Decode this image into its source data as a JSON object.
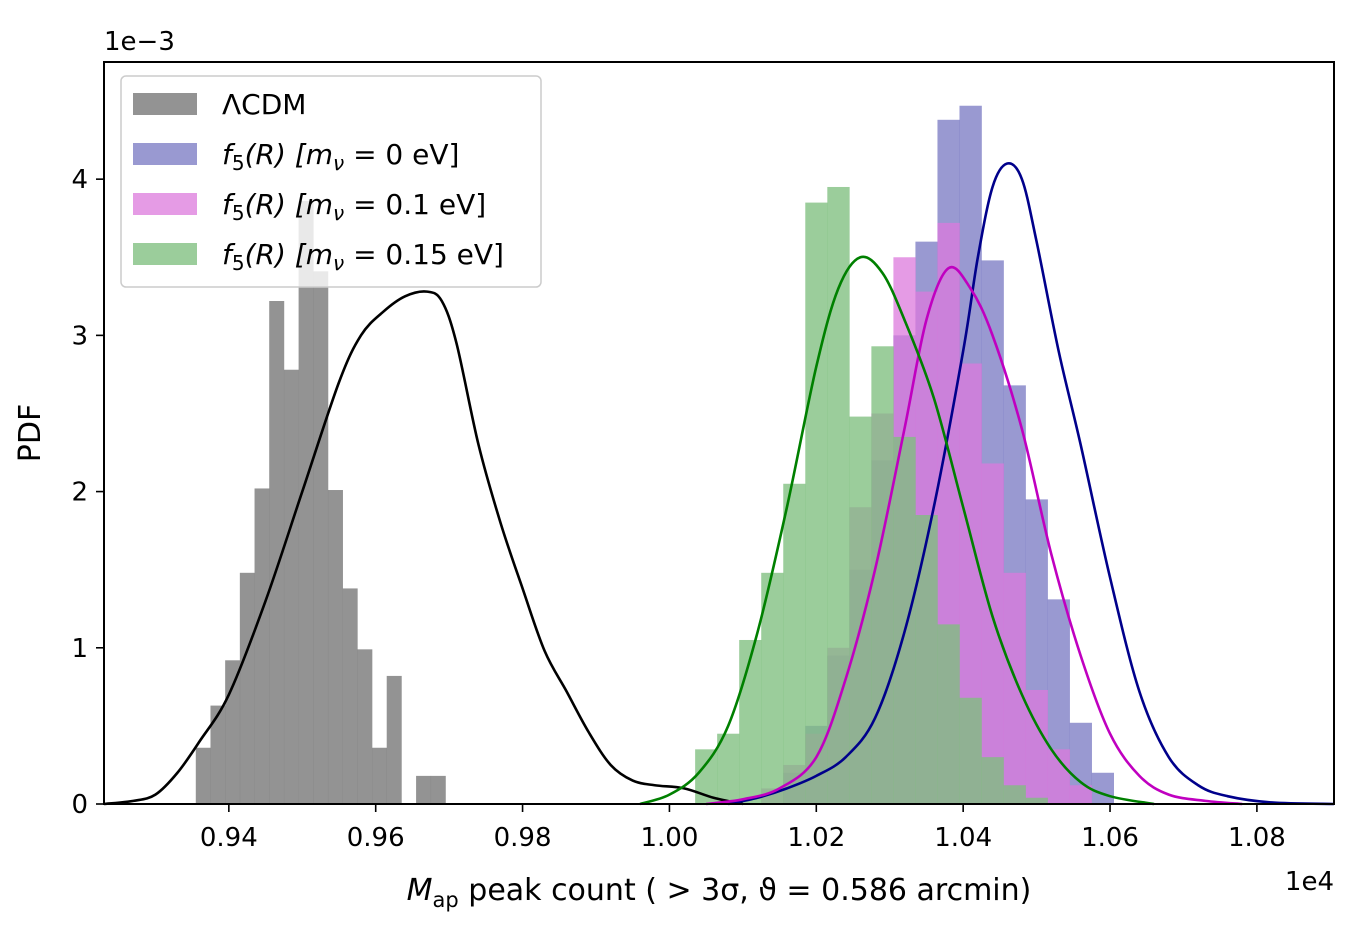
{
  "chart_data": {
    "type": "histogram",
    "title": "",
    "xlabel": "M_ap peak count (> 3σ, ϑ = 0.586 arcmin)",
    "xlabel_parts": {
      "main": "M",
      "sub": "ap",
      "rest": " peak count ( > 3σ, ϑ = 0.586 arcmin)"
    },
    "ylabel": "PDF",
    "x_offset_label": "1e4",
    "y_offset_label": "1e−3",
    "xlim": [
      0.923,
      1.0905
    ],
    "ylim": [
      0,
      4.75
    ],
    "xticks": [
      0.94,
      0.96,
      0.98,
      1.0,
      1.02,
      1.04,
      1.06,
      1.08
    ],
    "xtick_labels": [
      "0.94",
      "0.96",
      "0.98",
      "1.00",
      "1.02",
      "1.04",
      "1.06",
      "1.08"
    ],
    "yticks": [
      0,
      1,
      2,
      3,
      4
    ],
    "ytick_labels": [
      "0",
      "1",
      "2",
      "3",
      "4"
    ],
    "legend_position": "top-left",
    "series": [
      {
        "name": "ΛCDM",
        "legend": {
          "pre": "ΛCDM",
          "italic": "",
          "sub": "",
          "bracket": "",
          "value": ""
        },
        "color": "#808080",
        "line_color": "#000000",
        "alpha": 0.85,
        "bin_start": 0.9355,
        "bin_width": 0.002,
        "heights": [
          0.36,
          0.63,
          0.92,
          1.48,
          2.02,
          3.22,
          2.78,
          3.86,
          3.41,
          2.01,
          1.38,
          0.99,
          0.36,
          0.82,
          0.0,
          0.18,
          0.18
        ],
        "kde_x": [
          0.923,
          0.927,
          0.93,
          0.933,
          0.936,
          0.94,
          0.945,
          0.95,
          0.955,
          0.958,
          0.961,
          0.964,
          0.967,
          0.969,
          0.971,
          0.974,
          0.977,
          0.98,
          0.983,
          0.986,
          0.989,
          0.992,
          0.995,
          0.998,
          1.002,
          1.006,
          1.01
        ],
        "kde_y": [
          0.0,
          0.02,
          0.06,
          0.2,
          0.4,
          0.7,
          1.3,
          2.0,
          2.7,
          3.0,
          3.15,
          3.25,
          3.28,
          3.22,
          2.95,
          2.3,
          1.8,
          1.38,
          0.98,
          0.72,
          0.46,
          0.25,
          0.15,
          0.12,
          0.1,
          0.04,
          0.0
        ]
      },
      {
        "name": "f5(R) [mν = 0 eV]",
        "legend": {
          "pre": "",
          "italic": "f",
          "sub": "5",
          "bracket": "(R) [m",
          "value": " = 0 eV]"
        },
        "color": "#7272bf",
        "line_color": "#00008b",
        "alpha": 0.72,
        "bin_start": 1.0155,
        "bin_width": 0.003,
        "heights": [
          0.2,
          0.5,
          0.95,
          1.5,
          2.2,
          3.0,
          3.6,
          4.38,
          4.47,
          3.48,
          2.68,
          1.95,
          1.31,
          0.52,
          0.2
        ],
        "kde_x": [
          1.008,
          1.012,
          1.016,
          1.02,
          1.024,
          1.028,
          1.032,
          1.036,
          1.04,
          1.042,
          1.044,
          1.046,
          1.048,
          1.05,
          1.053,
          1.056,
          1.06,
          1.064,
          1.068,
          1.072,
          1.076,
          1.082,
          1.0905
        ],
        "kde_y": [
          0.0,
          0.04,
          0.1,
          0.18,
          0.3,
          0.55,
          1.1,
          1.9,
          2.9,
          3.5,
          3.95,
          4.1,
          4.0,
          3.6,
          2.9,
          2.3,
          1.45,
          0.72,
          0.3,
          0.12,
          0.05,
          0.01,
          0.0
        ]
      },
      {
        "name": "f5(R) [mν = 0.1 eV]",
        "legend": {
          "pre": "",
          "italic": "f",
          "sub": "5",
          "bracket": "(R) [m",
          "value": " = 0.1 eV]"
        },
        "color": "#dc7adc",
        "line_color": "#c000c0",
        "alpha": 0.75,
        "bin_start": 1.0125,
        "bin_width": 0.003,
        "heights": [
          0.1,
          0.25,
          0.45,
          1.0,
          1.9,
          2.5,
          3.5,
          3.28,
          3.72,
          2.82,
          2.18,
          1.48,
          0.73,
          0.35,
          0.12
        ],
        "kde_x": [
          1.005,
          1.01,
          1.015,
          1.02,
          1.024,
          1.028,
          1.032,
          1.035,
          1.038,
          1.041,
          1.044,
          1.048,
          1.052,
          1.056,
          1.06,
          1.064,
          1.068,
          1.073,
          1.078
        ],
        "kde_y": [
          0.0,
          0.03,
          0.1,
          0.3,
          0.8,
          1.5,
          2.4,
          3.1,
          3.43,
          3.3,
          3.0,
          2.4,
          1.6,
          0.95,
          0.45,
          0.18,
          0.06,
          0.02,
          0.0
        ]
      },
      {
        "name": "f5(R) [mν = 0.15 eV]",
        "legend": {
          "pre": "",
          "italic": "f",
          "sub": "5",
          "bracket": "(R) [m",
          "value": " = 0.15 eV]"
        },
        "color": "#7fbf7f",
        "line_color": "#008000",
        "alpha": 0.78,
        "bin_start": 1.0035,
        "bin_width": 0.003,
        "heights": [
          0.35,
          0.45,
          1.05,
          1.48,
          2.05,
          3.85,
          3.95,
          2.48,
          2.93,
          2.35,
          1.85,
          1.15,
          0.68,
          0.3,
          0.12,
          0.04
        ],
        "kde_x": [
          0.996,
          1.0,
          1.004,
          1.008,
          1.012,
          1.016,
          1.02,
          1.023,
          1.026,
          1.029,
          1.032,
          1.036,
          1.04,
          1.044,
          1.048,
          1.052,
          1.056,
          1.06,
          1.066
        ],
        "kde_y": [
          0.0,
          0.06,
          0.2,
          0.5,
          1.1,
          1.9,
          2.8,
          3.3,
          3.5,
          3.4,
          3.1,
          2.6,
          1.9,
          1.2,
          0.7,
          0.35,
          0.14,
          0.05,
          0.0
        ]
      }
    ]
  }
}
